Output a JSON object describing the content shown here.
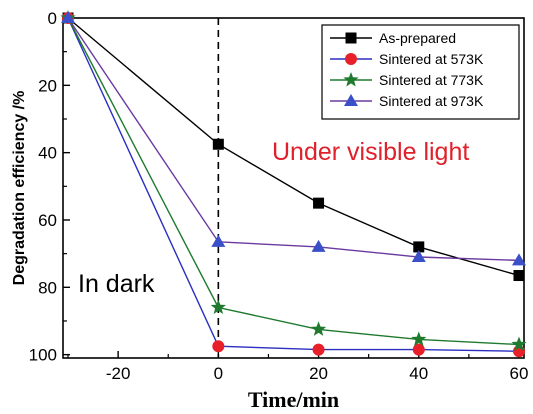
{
  "chart_data": {
    "type": "line",
    "xlabel": "Time/min",
    "ylabel": "Degradation efficiency /%",
    "xlim": [
      -31,
      61
    ],
    "ylim": [
      0,
      101
    ],
    "y_inverted": true,
    "x_ticks": [
      -20,
      0,
      20,
      40,
      60
    ],
    "y_ticks": [
      0,
      20,
      40,
      60,
      80,
      100
    ],
    "x": [
      -30,
      0,
      20,
      40,
      60
    ],
    "series": [
      {
        "name": "As-prepared",
        "marker": "square",
        "color": "#000000",
        "values": [
          0,
          37.5,
          55,
          68,
          76.5
        ]
      },
      {
        "name": "Sintered at 573K",
        "marker": "circle",
        "color": "#e8202a",
        "values": [
          0,
          97.5,
          98.5,
          98.5,
          99
        ]
      },
      {
        "name": "Sintered at 773K",
        "marker": "star",
        "color": "#1f7a2e",
        "values": [
          0,
          86,
          92.5,
          95.5,
          97
        ]
      },
      {
        "name": "Sintered at 973K",
        "marker": "triangle",
        "color": "#3a4fc8",
        "values": [
          0,
          66.5,
          68,
          71,
          72
        ]
      }
    ],
    "line_colors": [
      "#000000",
      "#2a2fc0",
      "#1f7a2e",
      "#6a3aa0"
    ],
    "vline_x": 0,
    "annotations": [
      {
        "text": "Under visible light",
        "color": "#e0202a"
      },
      {
        "text": "In dark",
        "color": "#000000"
      }
    ],
    "legend_position": "top-right",
    "grid": false
  }
}
